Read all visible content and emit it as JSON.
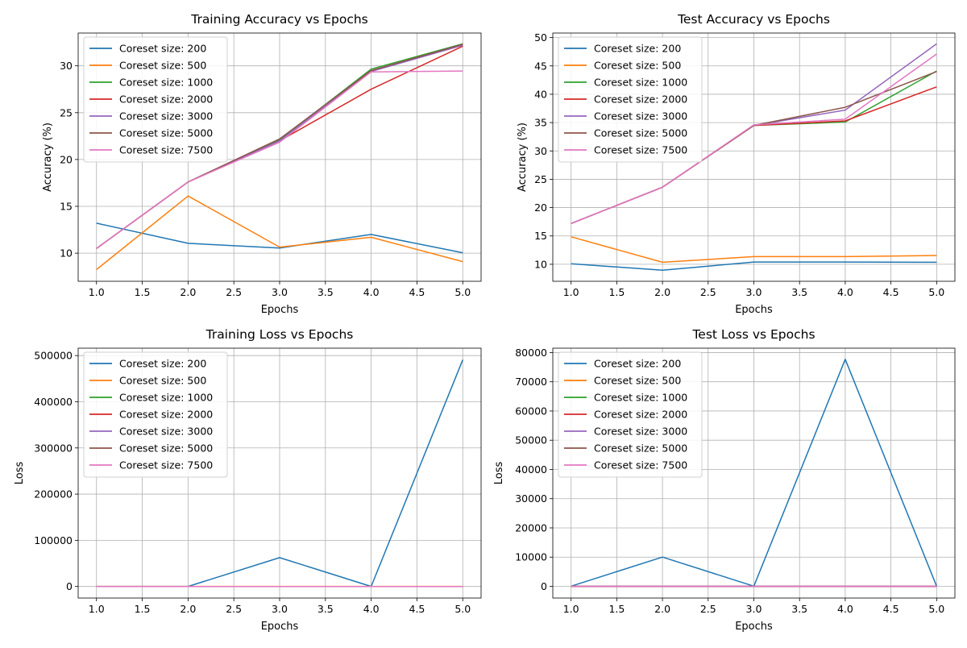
{
  "chart_data": [
    {
      "type": "line",
      "title": "Training Accuracy vs Epochs",
      "xlabel": "Epochs",
      "ylabel": "Accuracy (%)",
      "xlim": [
        0.8,
        5.2
      ],
      "ylim": [
        7.0,
        33.5
      ],
      "xticks": [
        1.0,
        1.5,
        2.0,
        2.5,
        3.0,
        3.5,
        4.0,
        4.5,
        5.0
      ],
      "xtick_labels": [
        "1.0",
        "1.5",
        "2.0",
        "2.5",
        "3.0",
        "3.5",
        "4.0",
        "4.5",
        "5.0"
      ],
      "yticks": [
        10,
        15,
        20,
        25,
        30
      ],
      "ytick_labels": [
        "10",
        "15",
        "20",
        "25",
        "30"
      ],
      "grid": true,
      "legend_position": "top-left",
      "x": [
        1,
        2,
        3,
        4,
        5
      ],
      "series": [
        {
          "name": "Coreset size: 200",
          "color": "#1f77b4",
          "values": [
            13.2,
            11.05,
            10.55,
            12.0,
            10.05
          ]
        },
        {
          "name": "Coreset size: 500",
          "color": "#ff7f0e",
          "values": [
            8.25,
            16.1,
            10.65,
            11.7,
            9.1
          ]
        },
        {
          "name": "Coreset size: 1000",
          "color": "#2ca02c",
          "values": [
            10.5,
            17.6,
            22.1,
            29.65,
            32.35
          ]
        },
        {
          "name": "Coreset size: 2000",
          "color": "#d62728",
          "values": [
            10.5,
            17.6,
            22.0,
            27.5,
            32.1
          ]
        },
        {
          "name": "Coreset size: 3000",
          "color": "#9467bd",
          "values": [
            10.5,
            17.6,
            22.0,
            29.4,
            32.2
          ]
        },
        {
          "name": "Coreset size: 5000",
          "color": "#8c564b",
          "values": [
            10.5,
            17.6,
            22.2,
            29.5,
            32.3
          ]
        },
        {
          "name": "Coreset size: 7500",
          "color": "#e377c2",
          "values": [
            10.5,
            17.6,
            21.85,
            29.35,
            29.45
          ]
        }
      ]
    },
    {
      "type": "line",
      "title": "Test Accuracy vs Epochs",
      "xlabel": "Epochs",
      "ylabel": "Accuracy (%)",
      "xlim": [
        0.8,
        5.2
      ],
      "ylim": [
        7.0,
        50.8
      ],
      "xticks": [
        1.0,
        1.5,
        2.0,
        2.5,
        3.0,
        3.5,
        4.0,
        4.5,
        5.0
      ],
      "xtick_labels": [
        "1.0",
        "1.5",
        "2.0",
        "2.5",
        "3.0",
        "3.5",
        "4.0",
        "4.5",
        "5.0"
      ],
      "yticks": [
        10,
        15,
        20,
        25,
        30,
        35,
        40,
        45,
        50
      ],
      "ytick_labels": [
        "10",
        "15",
        "20",
        "25",
        "30",
        "35",
        "40",
        "45",
        "50"
      ],
      "grid": true,
      "legend_position": "top-left",
      "x": [
        1,
        2,
        3,
        4,
        5
      ],
      "series": [
        {
          "name": "Coreset size: 200",
          "color": "#1f77b4",
          "values": [
            10.1,
            8.95,
            10.4,
            10.4,
            10.35
          ]
        },
        {
          "name": "Coreset size: 500",
          "color": "#ff7f0e",
          "values": [
            14.85,
            10.35,
            11.35,
            11.35,
            11.55
          ]
        },
        {
          "name": "Coreset size: 1000",
          "color": "#2ca02c",
          "values": [
            17.2,
            23.6,
            34.5,
            35.1,
            44.1
          ]
        },
        {
          "name": "Coreset size: 2000",
          "color": "#d62728",
          "values": [
            17.2,
            23.6,
            34.5,
            35.3,
            41.3
          ]
        },
        {
          "name": "Coreset size: 3000",
          "color": "#9467bd",
          "values": [
            17.2,
            23.6,
            34.5,
            37.2,
            48.9
          ]
        },
        {
          "name": "Coreset size: 5000",
          "color": "#8c564b",
          "values": [
            17.2,
            23.6,
            34.5,
            37.7,
            44.0
          ]
        },
        {
          "name": "Coreset size: 7500",
          "color": "#e377c2",
          "values": [
            17.2,
            23.6,
            34.6,
            35.6,
            47.1
          ]
        }
      ]
    },
    {
      "type": "line",
      "title": "Training Loss vs Epochs",
      "xlabel": "Epochs",
      "ylabel": "Loss",
      "xlim": [
        0.8,
        5.2
      ],
      "ylim": [
        -25000,
        516000
      ],
      "xticks": [
        1.0,
        1.5,
        2.0,
        2.5,
        3.0,
        3.5,
        4.0,
        4.5,
        5.0
      ],
      "xtick_labels": [
        "1.0",
        "1.5",
        "2.0",
        "2.5",
        "3.0",
        "3.5",
        "4.0",
        "4.5",
        "5.0"
      ],
      "yticks": [
        0,
        100000,
        200000,
        300000,
        400000,
        500000
      ],
      "ytick_labels": [
        "0",
        "100000",
        "200000",
        "300000",
        "400000",
        "500000"
      ],
      "grid": true,
      "legend_position": "top-left",
      "x": [
        1,
        2,
        3,
        4,
        5
      ],
      "series": [
        {
          "name": "Coreset size: 200",
          "color": "#1f77b4",
          "values": [
            100,
            100,
            62500,
            200,
            491000
          ]
        },
        {
          "name": "Coreset size: 500",
          "color": "#ff7f0e",
          "values": [
            50,
            50,
            50,
            50,
            50
          ]
        },
        {
          "name": "Coreset size: 1000",
          "color": "#2ca02c",
          "values": [
            10,
            10,
            10,
            10,
            10
          ]
        },
        {
          "name": "Coreset size: 2000",
          "color": "#d62728",
          "values": [
            10,
            10,
            10,
            10,
            10
          ]
        },
        {
          "name": "Coreset size: 3000",
          "color": "#9467bd",
          "values": [
            10,
            10,
            10,
            10,
            10
          ]
        },
        {
          "name": "Coreset size: 5000",
          "color": "#8c564b",
          "values": [
            10,
            10,
            10,
            10,
            10
          ]
        },
        {
          "name": "Coreset size: 7500",
          "color": "#e377c2",
          "values": [
            10,
            10,
            10,
            10,
            10
          ]
        }
      ]
    },
    {
      "type": "line",
      "title": "Test Loss vs Epochs",
      "xlabel": "Epochs",
      "ylabel": "Loss",
      "xlim": [
        0.8,
        5.2
      ],
      "ylim": [
        -4000,
        81500
      ],
      "xticks": [
        1.0,
        1.5,
        2.0,
        2.5,
        3.0,
        3.5,
        4.0,
        4.5,
        5.0
      ],
      "xtick_labels": [
        "1.0",
        "1.5",
        "2.0",
        "2.5",
        "3.0",
        "3.5",
        "4.0",
        "4.5",
        "5.0"
      ],
      "yticks": [
        0,
        10000,
        20000,
        30000,
        40000,
        50000,
        60000,
        70000,
        80000
      ],
      "ytick_labels": [
        "0",
        "10000",
        "20000",
        "30000",
        "40000",
        "50000",
        "60000",
        "70000",
        "80000"
      ],
      "grid": true,
      "legend_position": "top-left",
      "x": [
        1,
        2,
        3,
        4,
        5
      ],
      "series": [
        {
          "name": "Coreset size: 200",
          "color": "#1f77b4",
          "values": [
            50,
            10000,
            50,
            77700,
            50
          ]
        },
        {
          "name": "Coreset size: 500",
          "color": "#ff7f0e",
          "values": [
            5,
            5,
            5,
            5,
            5
          ]
        },
        {
          "name": "Coreset size: 1000",
          "color": "#2ca02c",
          "values": [
            2,
            2,
            2,
            2,
            2
          ]
        },
        {
          "name": "Coreset size: 2000",
          "color": "#d62728",
          "values": [
            2,
            2,
            2,
            2,
            2
          ]
        },
        {
          "name": "Coreset size: 3000",
          "color": "#9467bd",
          "values": [
            2,
            2,
            2,
            2,
            2
          ]
        },
        {
          "name": "Coreset size: 5000",
          "color": "#8c564b",
          "values": [
            2,
            2,
            2,
            2,
            2
          ]
        },
        {
          "name": "Coreset size: 7500",
          "color": "#e377c2",
          "values": [
            2,
            2,
            2,
            2,
            2
          ]
        }
      ]
    }
  ]
}
